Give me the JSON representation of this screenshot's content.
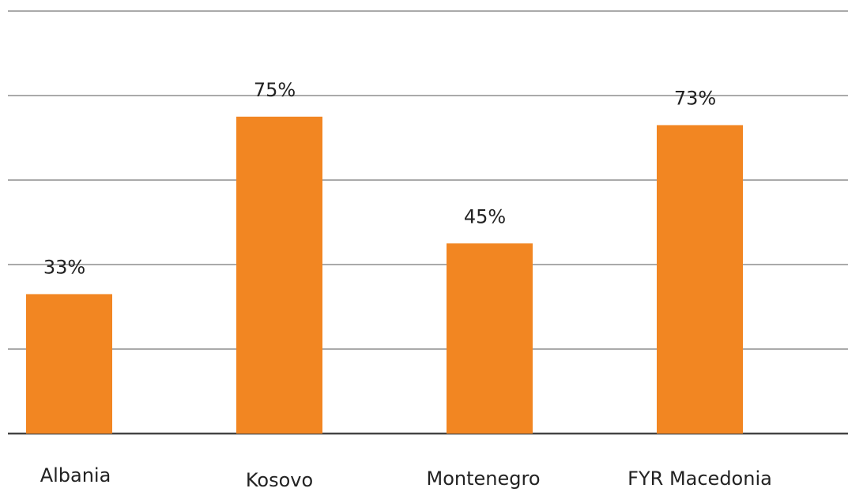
{
  "chart_data": {
    "type": "bar",
    "categories": [
      "Albania",
      "Kosovo",
      "Montenegro",
      "FYR Macedonia"
    ],
    "values": [
      33,
      75,
      45,
      73
    ],
    "value_labels": [
      "33%",
      "75%",
      "45%",
      "73%"
    ],
    "color": "#f28622",
    "ylim": [
      0,
      100
    ],
    "yticks": [
      0,
      20,
      40,
      60,
      80,
      100
    ],
    "grid": true
  }
}
